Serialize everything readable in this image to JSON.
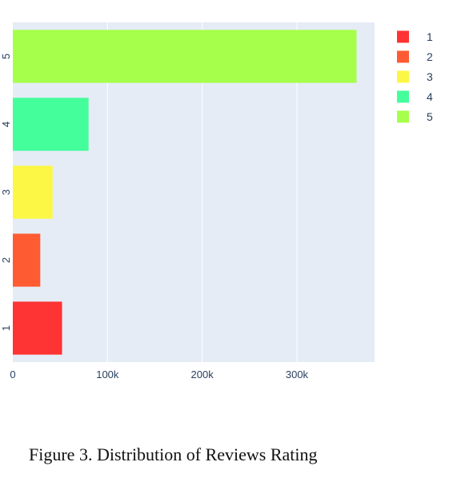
{
  "chart_data": {
    "type": "bar",
    "orientation": "horizontal",
    "categories": [
      "1",
      "2",
      "3",
      "4",
      "5"
    ],
    "values": [
      52000,
      29000,
      42000,
      80000,
      363000
    ],
    "colors": [
      "#fe3333",
      "#ff5b33",
      "#fcf744",
      "#44fd9b",
      "#a6ff4b"
    ],
    "x_ticks": [
      0,
      100000,
      200000,
      300000
    ],
    "x_tick_labels": [
      "0",
      "100k",
      "200k",
      "300k"
    ],
    "xlim": [
      0,
      382000
    ],
    "legend": {
      "placement": "top-right",
      "entries": [
        "1",
        "2",
        "3",
        "4",
        "5"
      ]
    },
    "grid": true,
    "background_color": "#e5ecf6"
  },
  "caption": "Figure 3. Distribution of Reviews Rating"
}
